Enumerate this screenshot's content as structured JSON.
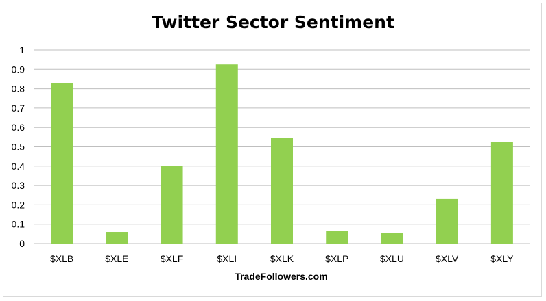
{
  "chart_data": {
    "type": "bar",
    "title": "Twitter Sector Sentiment",
    "xlabel": "TradeFollowers.com",
    "ylabel": "",
    "categories": [
      "$XLB",
      "$XLE",
      "$XLF",
      "$XLI",
      "$XLK",
      "$XLP",
      "$XLU",
      "$XLV",
      "$XLY"
    ],
    "values": [
      0.83,
      0.06,
      0.4,
      0.925,
      0.545,
      0.065,
      0.055,
      0.23,
      0.525
    ],
    "ylim": [
      0,
      1
    ],
    "yticks": [
      "0",
      "0.1",
      "0.2",
      "0.3",
      "0.4",
      "0.5",
      "0.6",
      "0.7",
      "0.8",
      "0.9",
      "1"
    ],
    "grid": true,
    "legend": "none",
    "bar_color": "#92d050",
    "grid_color": "#bfbfbf"
  }
}
